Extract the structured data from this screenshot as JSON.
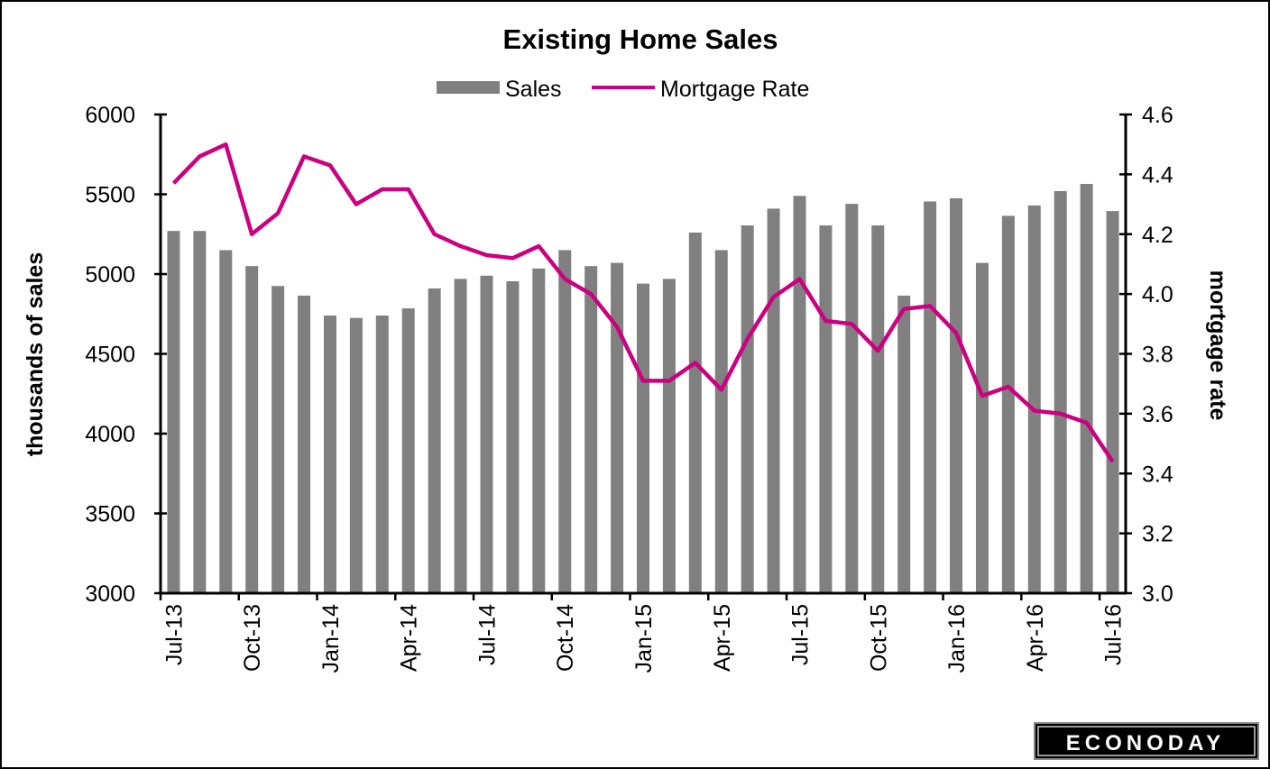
{
  "chart_data": {
    "type": "bar+line",
    "title": "Existing Home Sales",
    "legend": {
      "placement": "top-center",
      "entries": [
        "Sales",
        "Mortgage Rate"
      ]
    },
    "ylabel": "thousands of sales",
    "y2label": "mortgage rate",
    "ylim": [
      3000,
      6000
    ],
    "y2lim": [
      3.0,
      4.6
    ],
    "yticks": [
      "3000",
      "3500",
      "4000",
      "4500",
      "5000",
      "5500",
      "6000"
    ],
    "y2ticks": [
      "3.0",
      "3.2",
      "3.4",
      "3.6",
      "3.8",
      "4.0",
      "4.2",
      "4.4",
      "4.6"
    ],
    "xtick_labels": [
      "Jul-13",
      "Oct-13",
      "Jan-14",
      "Apr-14",
      "Jul-14",
      "Oct-14",
      "Jan-15",
      "Apr-15",
      "Jul-15",
      "Oct-15",
      "Jan-16",
      "Apr-16",
      "Jul-16"
    ],
    "categories": [
      "Jul-13",
      "Aug-13",
      "Sep-13",
      "Oct-13",
      "Nov-13",
      "Dec-13",
      "Jan-14",
      "Feb-14",
      "Mar-14",
      "Apr-14",
      "May-14",
      "Jun-14",
      "Jul-14",
      "Aug-14",
      "Sep-14",
      "Oct-14",
      "Nov-14",
      "Dec-14",
      "Jan-15",
      "Feb-15",
      "Mar-15",
      "Apr-15",
      "May-15",
      "Jun-15",
      "Jul-15",
      "Aug-15",
      "Sep-15",
      "Oct-15",
      "Nov-15",
      "Dec-15",
      "Jan-16",
      "Feb-16",
      "Mar-16",
      "Apr-16",
      "May-16",
      "Jun-16",
      "Jul-16"
    ],
    "series": [
      {
        "name": "Sales",
        "type": "bar",
        "axis": "left",
        "color": "#808080",
        "values": [
          5270,
          5270,
          5150,
          5050,
          4925,
          4865,
          4740,
          4725,
          4740,
          4785,
          4910,
          4970,
          4990,
          4955,
          5035,
          5150,
          5050,
          5070,
          4940,
          4970,
          5260,
          5150,
          5305,
          5410,
          5490,
          5305,
          5440,
          5305,
          4865,
          5455,
          5475,
          5070,
          5365,
          5430,
          5520,
          5565,
          5395
        ]
      },
      {
        "name": "Mortgage Rate",
        "type": "line",
        "axis": "right",
        "color": "#cc0080",
        "values": [
          4.37,
          4.46,
          4.5,
          4.2,
          4.27,
          4.46,
          4.43,
          4.3,
          4.35,
          4.35,
          4.2,
          4.16,
          4.13,
          4.12,
          4.16,
          4.05,
          4.0,
          3.89,
          3.71,
          3.71,
          3.77,
          3.68,
          3.85,
          3.99,
          4.05,
          3.91,
          3.9,
          3.81,
          3.95,
          3.96,
          3.87,
          3.66,
          3.69,
          3.61,
          3.6,
          3.57,
          3.44
        ]
      }
    ],
    "grid": false
  },
  "logo": "ECONODAY"
}
